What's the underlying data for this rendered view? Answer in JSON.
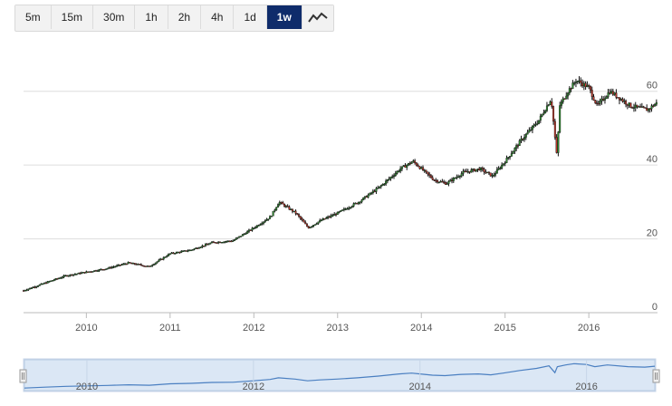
{
  "toolbar": {
    "timeframes": [
      {
        "label": "5m",
        "active": false
      },
      {
        "label": "15m",
        "active": false
      },
      {
        "label": "30m",
        "active": false
      },
      {
        "label": "1h",
        "active": false
      },
      {
        "label": "2h",
        "active": false
      },
      {
        "label": "4h",
        "active": false
      },
      {
        "label": "1d",
        "active": false
      },
      {
        "label": "1w",
        "active": true
      }
    ],
    "chart_type_icon": "line-chart-icon"
  },
  "colors": {
    "accent": "#0f2c6b",
    "up_candle": "#2e8b2e",
    "down_candle": "#c0392b",
    "wick": "#111111",
    "grid": "#dddddd",
    "navigator_fill": "#dbe7f5",
    "navigator_line": "#4a7fc1"
  },
  "chart_data": {
    "type": "line",
    "title": "",
    "xlabel": "",
    "ylabel": "",
    "ylim": [
      0,
      70
    ],
    "x_ticks": [
      "2010",
      "2011",
      "2012",
      "2013",
      "2014",
      "2015",
      "2016"
    ],
    "y_ticks": [
      0,
      20,
      40,
      60
    ],
    "grid": true,
    "series": [
      {
        "x": [
          2009.25,
          2009.5,
          2009.75,
          2010.0,
          2010.25,
          2010.5,
          2010.75,
          2011.0,
          2011.25,
          2011.5,
          2011.75,
          2012.0,
          2012.2,
          2012.3,
          2012.5,
          2012.65,
          2012.8,
          2013.0,
          2013.25,
          2013.5,
          2013.75,
          2013.9,
          2014.0,
          2014.15,
          2014.3,
          2014.5,
          2014.7,
          2014.85,
          2015.0,
          2015.2,
          2015.4,
          2015.55,
          2015.62,
          2015.65,
          2015.75,
          2015.85,
          2016.0,
          2016.1,
          2016.25,
          2016.5,
          2016.7,
          2016.82
        ],
        "values": [
          6,
          8,
          10,
          11,
          12,
          13.5,
          12.5,
          16,
          17,
          19,
          19.5,
          23,
          26,
          30,
          27,
          23,
          25,
          27,
          30,
          34,
          39,
          41,
          39,
          36,
          35,
          38,
          39,
          37,
          41,
          47,
          52,
          58,
          42,
          56,
          60,
          63,
          61,
          56,
          60,
          56,
          55,
          57
        ]
      }
    ],
    "navigator": {
      "x_ticks": [
        "2010",
        "2012",
        "2014",
        "2016"
      ]
    }
  }
}
